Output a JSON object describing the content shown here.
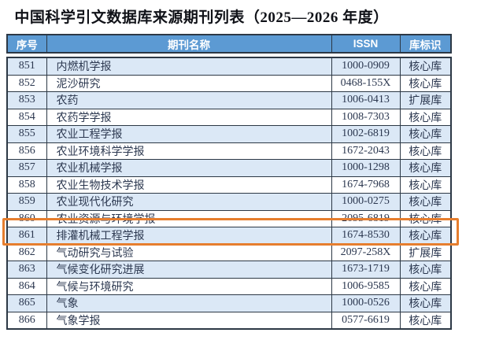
{
  "title": "中国科学引文数据库来源期刊列表（2025—2026 年度）",
  "table": {
    "columns": [
      "序号",
      "期刊名称",
      "ISSN",
      "库标识"
    ],
    "rows": [
      {
        "no": "851",
        "name": "内燃机学报",
        "issn": "1000-0909",
        "db": "核心库"
      },
      {
        "no": "852",
        "name": "泥沙研究",
        "issn": "0468-155X",
        "db": "核心库"
      },
      {
        "no": "853",
        "name": "农药",
        "issn": "1006-0413",
        "db": "扩展库"
      },
      {
        "no": "854",
        "name": "农药学学报",
        "issn": "1008-7303",
        "db": "核心库"
      },
      {
        "no": "855",
        "name": "农业工程学报",
        "issn": "1002-6819",
        "db": "核心库"
      },
      {
        "no": "856",
        "name": "农业环境科学学报",
        "issn": "1672-2043",
        "db": "核心库"
      },
      {
        "no": "857",
        "name": "农业机械学报",
        "issn": "1000-1298",
        "db": "核心库"
      },
      {
        "no": "858",
        "name": "农业生物技术学报",
        "issn": "1674-7968",
        "db": "核心库"
      },
      {
        "no": "859",
        "name": "农业现代化研究",
        "issn": "1000-0275",
        "db": "核心库"
      },
      {
        "no": "860",
        "name": "农业资源与环境学报",
        "issn": "2095-6819",
        "db": "核心库"
      },
      {
        "no": "861",
        "name": "排灌机械工程学报",
        "issn": "1674-8530",
        "db": "核心库"
      },
      {
        "no": "862",
        "name": "气动研究与试验",
        "issn": "2097-258X",
        "db": "扩展库"
      },
      {
        "no": "863",
        "name": "气候变化研究进展",
        "issn": "1673-1719",
        "db": "核心库"
      },
      {
        "no": "864",
        "name": "气候与环境研究",
        "issn": "1006-9585",
        "db": "核心库"
      },
      {
        "no": "865",
        "name": "气象",
        "issn": "1000-0526",
        "db": "核心库"
      },
      {
        "no": "866",
        "name": "气象学报",
        "issn": "0577-6619",
        "db": "核心库"
      }
    ]
  },
  "highlight": {
    "highlighted_row_no": "861",
    "color": "#e67e2e"
  },
  "colors": {
    "header_bg": "#5c9ad3",
    "header_text": "#ffffff",
    "alt_row_bg": "#dbe8f6",
    "border": "#2c3845",
    "body_text": "#2c3850"
  }
}
